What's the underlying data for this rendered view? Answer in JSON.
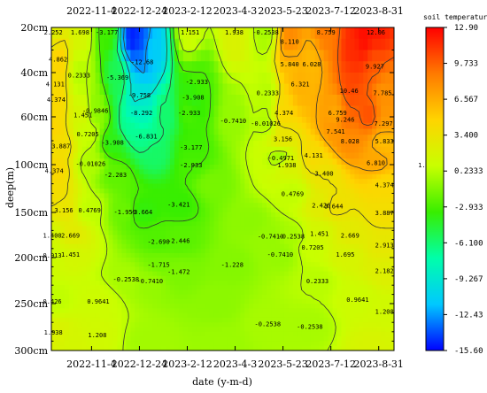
{
  "chart_data": {
    "type": "heatmap",
    "subtype": "filled-contour",
    "title": "",
    "xlabel": "date (y-m-d)",
    "ylabel": "deep(m)",
    "x_ticks": [
      "2022-11-4",
      "2022-12-24",
      "2023-2-12",
      "2023-4-3",
      "2023-5-23",
      "2023-7-12",
      "2023-8-31"
    ],
    "x_tick_dates": [
      "2022-11-04",
      "2022-12-24",
      "2023-02-12",
      "2023-04-03",
      "2023-05-23",
      "2023-07-12",
      "2023-08-31"
    ],
    "xlim": [
      "2022-09-23",
      "2023-09-16"
    ],
    "y_ticks": [
      "20cm",
      "40cm",
      "60cm",
      "100cm",
      "150cm",
      "200cm",
      "250cm",
      "300cm"
    ],
    "y_tick_depths_cm": [
      20,
      40,
      60,
      100,
      150,
      200,
      250,
      300
    ],
    "ylim_cm": [
      20,
      300
    ],
    "y_axis_inverted": true,
    "grid": false,
    "colorbar": {
      "title": "soil temperature",
      "ticks": [
        "12.90",
        "9.733",
        "6.567",
        "3.400",
        "0.2333",
        "-2.933",
        "-6.100",
        "-9.267",
        "-12.43",
        "-15.60"
      ],
      "tick_values": [
        12.9,
        9.733,
        6.567,
        3.4,
        0.2333,
        -2.933,
        -6.1,
        -9.267,
        -12.43,
        -15.6
      ],
      "range": [
        -15.6,
        12.9
      ],
      "colormap": [
        "#0000ff",
        "#00c8ff",
        "#00ffaa",
        "#38ee00",
        "#c8ff00",
        "#ffd400",
        "#ff7a00",
        "#ff0000"
      ]
    },
    "contour_labels": [
      {
        "text": "2.252",
        "date": "2022-09-25",
        "depth": 22
      },
      {
        "text": "4.862",
        "date": "2022-09-30",
        "depth": 34
      },
      {
        "text": "1.698",
        "date": "2022-10-23",
        "depth": 22
      },
      {
        "text": "-3.177",
        "date": "2022-11-20",
        "depth": 22
      },
      {
        "text": "4.131",
        "date": "2022-09-27",
        "depth": 45
      },
      {
        "text": "0.2333",
        "date": "2022-10-22",
        "depth": 41
      },
      {
        "text": "-5.369",
        "date": "2022-12-01",
        "depth": 42
      },
      {
        "text": "-8.292",
        "date": "2022-12-26",
        "depth": 58
      },
      {
        "text": "-9.758",
        "date": "2022-12-24",
        "depth": 50
      },
      {
        "text": "-12.68",
        "date": "2022-12-27",
        "depth": 35
      },
      {
        "text": "1.151",
        "date": "2023-02-15",
        "depth": 22
      },
      {
        "text": "-2.933",
        "date": "2023-02-22",
        "depth": 44
      },
      {
        "text": "-3.908",
        "date": "2023-02-18",
        "depth": 51
      },
      {
        "text": "-2.933",
        "date": "2023-02-14",
        "depth": 58
      },
      {
        "text": "4.374",
        "date": "2022-09-28",
        "depth": 52
      },
      {
        "text": "1.451",
        "date": "2022-10-26",
        "depth": 59
      },
      {
        "text": "-0.9846",
        "date": "2022-11-08",
        "depth": 57
      },
      {
        "text": "0.7205",
        "date": "2022-10-31",
        "depth": 74
      },
      {
        "text": "-3.908",
        "date": "2022-11-26",
        "depth": 81
      },
      {
        "text": "-6.831",
        "date": "2022-12-31",
        "depth": 76
      },
      {
        "text": "3.887",
        "date": "2022-10-03",
        "depth": 84
      },
      {
        "text": "-3.177",
        "date": "2023-02-16",
        "depth": 85
      },
      {
        "text": "1.938",
        "date": "2023-10-21",
        "depth": 100
      },
      {
        "text": "4.374",
        "date": "2022-09-26",
        "depth": 106
      },
      {
        "text": "-0.01026",
        "date": "2022-11-03",
        "depth": 99
      },
      {
        "text": "-2.283",
        "date": "2022-11-29",
        "depth": 110
      },
      {
        "text": "-2.933",
        "date": "2023-02-16",
        "depth": 100
      },
      {
        "text": "3.156",
        "date": "2022-10-06",
        "depth": 147
      },
      {
        "text": "0.4769",
        "date": "2022-11-02",
        "depth": 147
      },
      {
        "text": "-1.959",
        "date": "2022-12-09",
        "depth": 149
      },
      {
        "text": "-3.664",
        "date": "2022-12-26",
        "depth": 149
      },
      {
        "text": "-3.421",
        "date": "2023-02-03",
        "depth": 141
      },
      {
        "text": "1.400",
        "date": "2022-09-24",
        "depth": 175
      },
      {
        "text": "2.669",
        "date": "2022-10-13",
        "depth": 175
      },
      {
        "text": "-2.690",
        "date": "2023-01-13",
        "depth": 182
      },
      {
        "text": "-2.446",
        "date": "2023-02-03",
        "depth": 181
      },
      {
        "text": "0.913",
        "date": "2022-09-24",
        "depth": 197
      },
      {
        "text": "1.451",
        "date": "2022-10-13",
        "depth": 196
      },
      {
        "text": "-1.715",
        "date": "2023-01-13",
        "depth": 207
      },
      {
        "text": "-1.228",
        "date": "2023-03-31",
        "depth": 207
      },
      {
        "text": "-0.2538",
        "date": "2022-12-10",
        "depth": 223
      },
      {
        "text": "-0.7410",
        "date": "2023-01-04",
        "depth": 225
      },
      {
        "text": "-1.472",
        "date": "2023-02-03",
        "depth": 215
      },
      {
        "text": "0.426",
        "date": "2022-09-24",
        "depth": 247
      },
      {
        "text": "0.9641",
        "date": "2022-11-11",
        "depth": 247
      },
      {
        "text": "1.938",
        "date": "2022-09-25",
        "depth": 280
      },
      {
        "text": "1.208",
        "date": "2022-11-10",
        "depth": 283
      },
      {
        "text": "1.938",
        "date": "2023-04-02",
        "depth": 22
      },
      {
        "text": "-0.2538",
        "date": "2023-05-05",
        "depth": 22
      },
      {
        "text": "0.2333",
        "date": "2023-05-07",
        "depth": 49
      },
      {
        "text": "-0.7410",
        "date": "2023-04-01",
        "depth": 63
      },
      {
        "text": "-0.01026",
        "date": "2023-05-05",
        "depth": 65
      },
      {
        "text": "-0.4971",
        "date": "2023-05-21",
        "depth": 94
      },
      {
        "text": "-0.7410",
        "date": "2023-05-10",
        "depth": 176
      },
      {
        "text": "-0.2538",
        "date": "2023-06-01",
        "depth": 176
      },
      {
        "text": "-0.7410",
        "date": "2023-05-20",
        "depth": 196
      },
      {
        "text": "0.4769",
        "date": "2023-06-02",
        "depth": 130
      },
      {
        "text": "-0.2538",
        "date": "2023-05-07",
        "depth": 271
      },
      {
        "text": "-0.2538",
        "date": "2023-06-20",
        "depth": 274
      },
      {
        "text": "8.110",
        "date": "2023-05-30",
        "depth": 26
      },
      {
        "text": "5.840",
        "date": "2023-05-30",
        "depth": 36
      },
      {
        "text": "8.759",
        "date": "2023-07-07",
        "depth": 22
      },
      {
        "text": "12.06",
        "date": "2023-08-28",
        "depth": 22
      },
      {
        "text": "6.028",
        "date": "2023-06-22",
        "depth": 36
      },
      {
        "text": "6.321",
        "date": "2023-06-10",
        "depth": 45
      },
      {
        "text": "9.927",
        "date": "2023-08-27",
        "depth": 37
      },
      {
        "text": "10.46",
        "date": "2023-07-31",
        "depth": 48
      },
      {
        "text": "7.785",
        "date": "2023-09-04",
        "depth": 49
      },
      {
        "text": "4.374",
        "date": "2023-05-24",
        "depth": 58
      },
      {
        "text": "6.759",
        "date": "2023-07-19",
        "depth": 58
      },
      {
        "text": "9.246",
        "date": "2023-07-27",
        "depth": 62
      },
      {
        "text": "7.297",
        "date": "2023-09-05",
        "depth": 65
      },
      {
        "text": "3.156",
        "date": "2023-05-23",
        "depth": 78
      },
      {
        "text": "7.541",
        "date": "2023-07-17",
        "depth": 72
      },
      {
        "text": "8.028",
        "date": "2023-08-01",
        "depth": 80
      },
      {
        "text": "5.833",
        "date": "2023-09-06",
        "depth": 80
      },
      {
        "text": "1.938",
        "date": "2023-05-27",
        "depth": 100
      },
      {
        "text": "4.131",
        "date": "2023-06-24",
        "depth": 92
      },
      {
        "text": "6.810",
        "date": "2023-08-28",
        "depth": 98
      },
      {
        "text": "3.400",
        "date": "2023-07-05",
        "depth": 109
      },
      {
        "text": "4.374",
        "date": "2023-09-06",
        "depth": 121
      },
      {
        "text": "2.426",
        "date": "2023-07-02",
        "depth": 142
      },
      {
        "text": "3.644",
        "date": "2023-07-15",
        "depth": 143
      },
      {
        "text": "3.887",
        "date": "2023-09-06",
        "depth": 150
      },
      {
        "text": "1.451",
        "date": "2023-06-30",
        "depth": 173
      },
      {
        "text": "2.669",
        "date": "2023-08-01",
        "depth": 175
      },
      {
        "text": "2.913",
        "date": "2023-09-06",
        "depth": 186
      },
      {
        "text": "0.7205",
        "date": "2023-06-23",
        "depth": 188
      },
      {
        "text": "1.695",
        "date": "2023-07-27",
        "depth": 196
      },
      {
        "text": "2.182",
        "date": "2023-09-06",
        "depth": 214
      },
      {
        "text": "0.2333",
        "date": "2023-06-28",
        "depth": 225
      },
      {
        "text": "0.9641",
        "date": "2023-08-09",
        "depth": 245
      },
      {
        "text": "1.208",
        "date": "2023-09-06",
        "depth": 258
      }
    ]
  }
}
